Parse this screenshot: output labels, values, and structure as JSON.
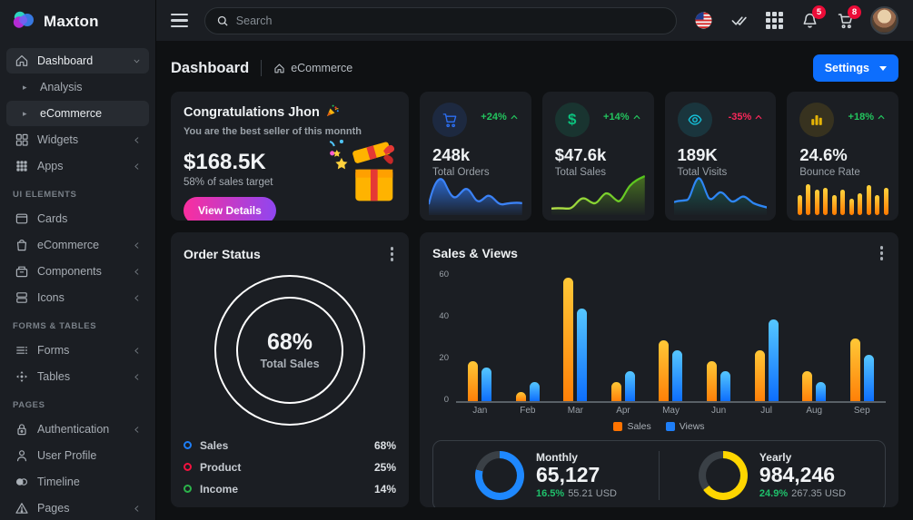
{
  "brand": {
    "name": "Maxton"
  },
  "topbar": {
    "search_placeholder": "Search",
    "notification_count": "5",
    "cart_count": "8",
    "icons": [
      "menu-icon",
      "search-icon",
      "flag-icon",
      "double-check-icon",
      "apps-grid-icon",
      "bell-icon",
      "cart-icon",
      "user-avatar"
    ]
  },
  "header": {
    "title": "Dashboard",
    "breadcrumb": "eCommerce",
    "settings_label": "Settings"
  },
  "sidebar": {
    "items": [
      {
        "label": "Dashboard",
        "icon": "home-icon",
        "chevron": "down",
        "active": true
      },
      {
        "label": "Analysis",
        "sub": true
      },
      {
        "label": "eCommerce",
        "sub": true,
        "active": true
      },
      {
        "label": "Widgets",
        "icon": "widgets-icon",
        "chevron": "left"
      },
      {
        "label": "Apps",
        "icon": "apps-icon",
        "chevron": "left"
      },
      {
        "section": "UI ELEMENTS"
      },
      {
        "label": "Cards",
        "icon": "cards-icon"
      },
      {
        "label": "eCommerce",
        "icon": "bag-icon",
        "chevron": "left"
      },
      {
        "label": "Components",
        "icon": "components-icon",
        "chevron": "left"
      },
      {
        "label": "Icons",
        "icon": "icons-icon",
        "chevron": "left"
      },
      {
        "section": "FORMS & TABLES"
      },
      {
        "label": "Forms",
        "icon": "forms-icon",
        "chevron": "left"
      },
      {
        "label": "Tables",
        "icon": "tables-icon",
        "chevron": "left"
      },
      {
        "section": "PAGES"
      },
      {
        "label": "Authentication",
        "icon": "lock-icon",
        "chevron": "left"
      },
      {
        "label": "User Profile",
        "icon": "user-icon"
      },
      {
        "label": "Timeline",
        "icon": "timeline-icon"
      },
      {
        "label": "Pages",
        "icon": "warning-icon",
        "chevron": "left"
      }
    ]
  },
  "congrats_card": {
    "title": "Congratulations Jhon",
    "emoji": "party-popper-icon",
    "subtitle": "You are the best seller of this monnth",
    "amount": "$168.5K",
    "target": "58% of sales target",
    "button_label": "View Details"
  },
  "stat_cards": [
    {
      "value": "248k",
      "label": "Total Orders",
      "delta": "+24%",
      "trend": "up",
      "icon": "cart-icon",
      "accent": "#2c6ff3",
      "spark": "wave-blue"
    },
    {
      "value": "$47.6k",
      "label": "Total Sales",
      "delta": "+14%",
      "trend": "up",
      "icon": "dollar-icon",
      "accent": "#0bc27d",
      "spark": "line-green"
    },
    {
      "value": "189K",
      "label": "Total Visits",
      "delta": "-35%",
      "trend": "down",
      "icon": "eye-icon",
      "accent": "#15c5de",
      "spark": "line-blue"
    },
    {
      "value": "24.6%",
      "label": "Bounce Rate",
      "delta": "+18%",
      "trend": "up",
      "icon": "bar-chart-icon",
      "accent": "#e4b307",
      "spark": "bars-orange",
      "bar_values": [
        22,
        34,
        28,
        30,
        22,
        28,
        18,
        24,
        33,
        22,
        30
      ]
    }
  ],
  "order_status": {
    "title": "Order Status",
    "center_value": "68%",
    "center_label": "Total Sales",
    "legend": [
      {
        "name": "Sales",
        "value": "68%",
        "color": "#1e7ef7"
      },
      {
        "name": "Product",
        "value": "25%",
        "color": "#f3123f"
      },
      {
        "name": "Income",
        "value": "14%",
        "color": "#2bb34a"
      }
    ]
  },
  "chart_data": {
    "type": "bar",
    "title": "Sales & Views",
    "categories": [
      "Jan",
      "Feb",
      "Mar",
      "Apr",
      "May",
      "Jun",
      "Jul",
      "Aug",
      "Sep"
    ],
    "series": [
      {
        "name": "Sales",
        "color": "#ff7300",
        "values": [
          19,
          4,
          59,
          9,
          29,
          19,
          24,
          14,
          30
        ]
      },
      {
        "name": "Views",
        "color": "#1e7ef7",
        "values": [
          16,
          9,
          44,
          14,
          24,
          14,
          39,
          9,
          22
        ]
      }
    ],
    "ylim": [
      0,
      60
    ],
    "yticks": [
      0,
      20,
      40,
      60
    ],
    "grid": false,
    "legend_position": "bottom"
  },
  "summary_cards": [
    {
      "label": "Monthly",
      "value": "65,127",
      "delta": "16.5%",
      "amount": "55.21 USD",
      "color": "#1e88ff",
      "arc_deg": 284
    },
    {
      "label": "Yearly",
      "value": "984,246",
      "delta": "24.9%",
      "amount": "267.35 USD",
      "color": "#ffd600",
      "arc_deg": 234
    }
  ]
}
